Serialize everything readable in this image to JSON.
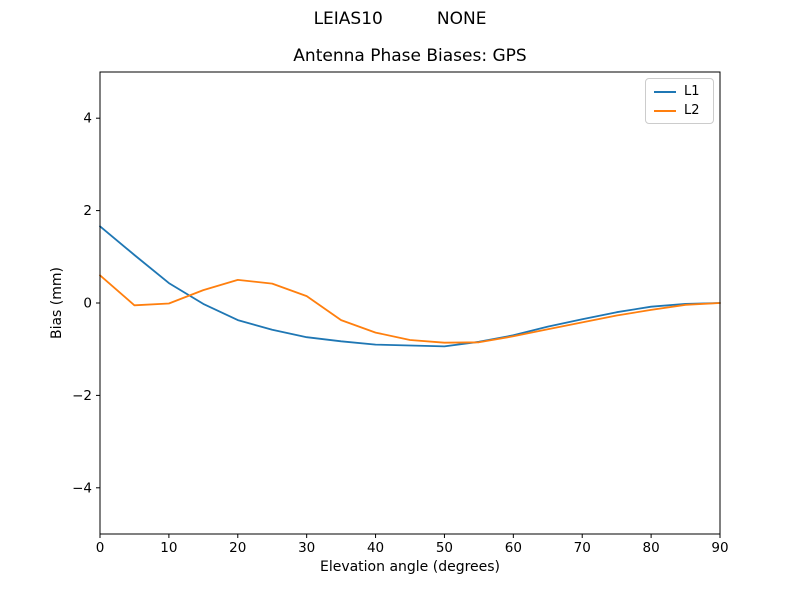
{
  "chart_data": {
    "type": "line",
    "suptitle": "LEIAS10          NONE",
    "title": "Antenna Phase Biases: GPS",
    "xlabel": "Elevation angle (degrees)",
    "ylabel": "Bias (mm)",
    "xlim": [
      0,
      90
    ],
    "ylim": [
      -5,
      5
    ],
    "xticks": [
      0,
      10,
      20,
      30,
      40,
      50,
      60,
      70,
      80,
      90
    ],
    "yticks": [
      -4,
      -2,
      0,
      2,
      4
    ],
    "grid": false,
    "background": "#ffffff",
    "text_color": "#000000",
    "spine_color": "#000000",
    "legend": {
      "position": "upper right",
      "entries": [
        "L1",
        "L2"
      ]
    },
    "x": [
      0,
      5,
      10,
      15,
      20,
      25,
      30,
      35,
      40,
      45,
      50,
      55,
      60,
      65,
      70,
      75,
      80,
      85,
      90
    ],
    "series": [
      {
        "name": "L1",
        "color": "#1f77b4",
        "values": [
          1.66,
          1.04,
          0.43,
          -0.02,
          -0.37,
          -0.58,
          -0.74,
          -0.83,
          -0.9,
          -0.92,
          -0.94,
          -0.84,
          -0.7,
          -0.51,
          -0.35,
          -0.2,
          -0.08,
          -0.02,
          0.0
        ]
      },
      {
        "name": "L2",
        "color": "#ff7f0e",
        "values": [
          0.6,
          -0.05,
          -0.01,
          0.28,
          0.5,
          0.42,
          0.15,
          -0.37,
          -0.64,
          -0.8,
          -0.86,
          -0.85,
          -0.72,
          -0.57,
          -0.42,
          -0.27,
          -0.15,
          -0.04,
          0.0
        ]
      }
    ]
  }
}
